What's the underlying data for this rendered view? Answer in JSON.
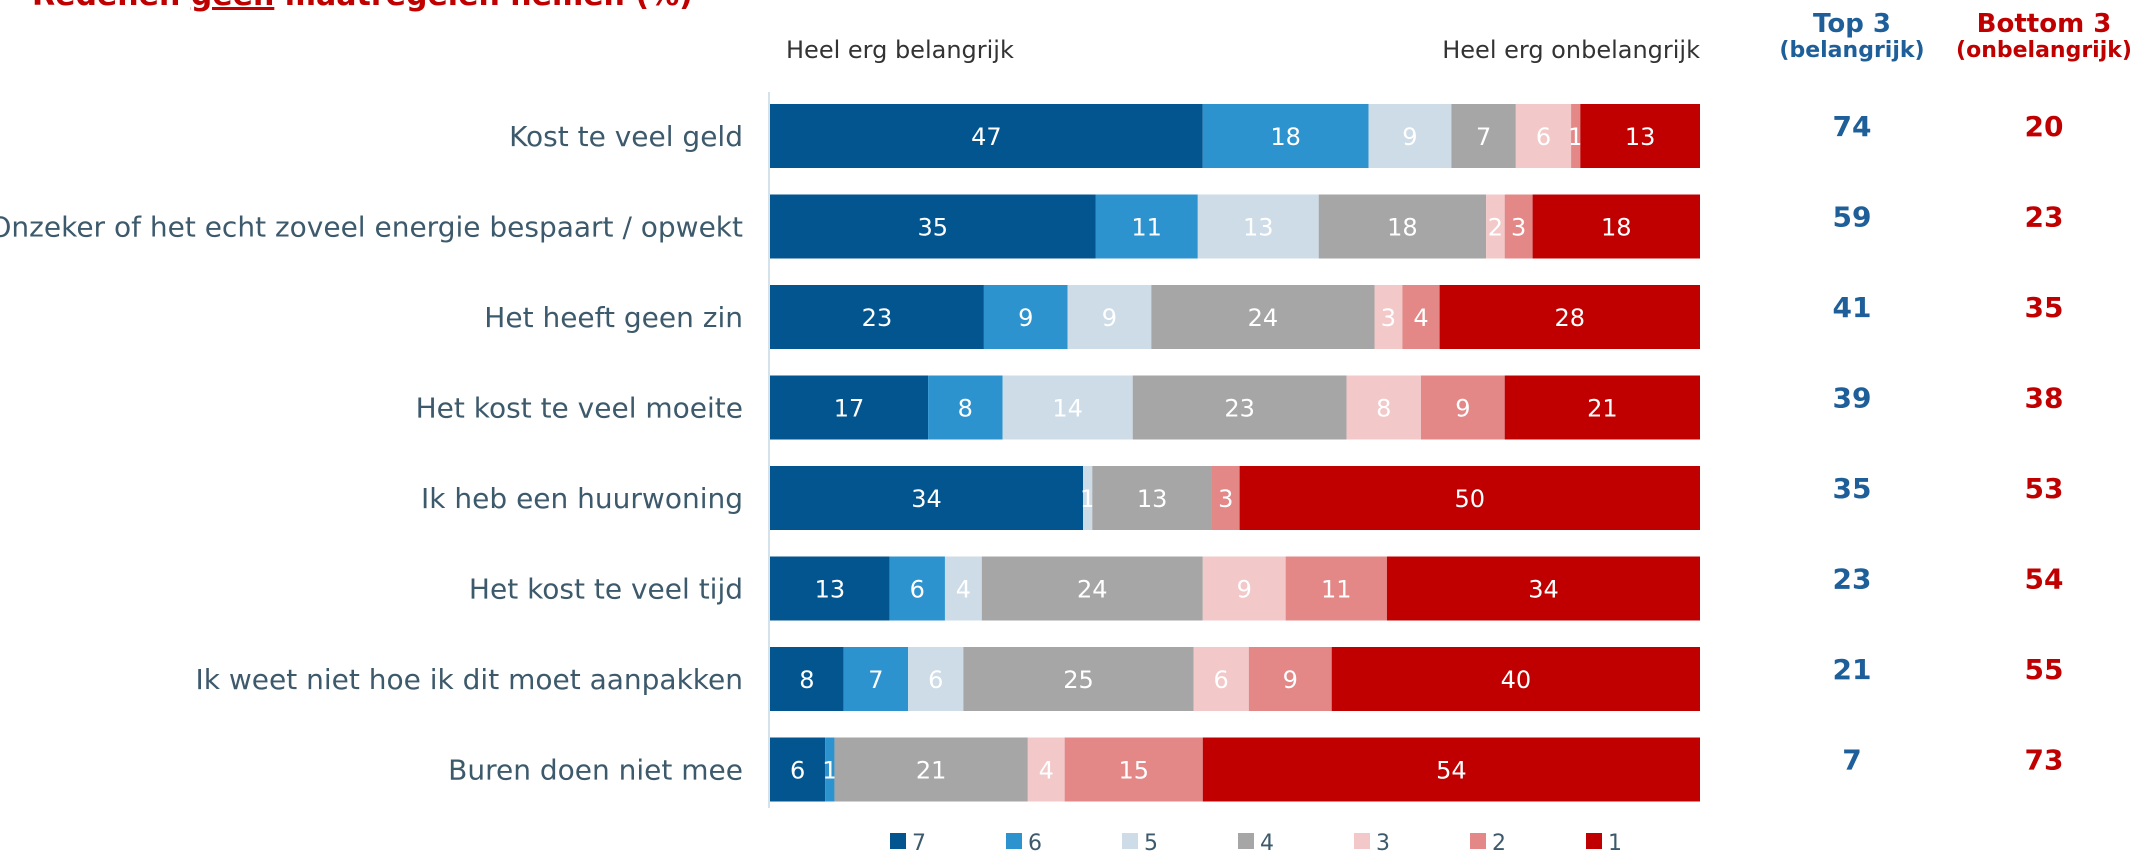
{
  "title": {
    "prefix": "Redenen ",
    "emphasis": "geen",
    "suffix": " maatregelen nemen (%)"
  },
  "header": {
    "left": "Heel erg belangrijk",
    "right": "Heel erg onbelangrijk"
  },
  "columns": {
    "top": {
      "title": "Top 3",
      "subtitle": "(belangrijk)",
      "color": "#1f5f99"
    },
    "bottom": {
      "title": "Bottom 3",
      "subtitle": "(onbelangrijk)",
      "color": "#c00000"
    }
  },
  "chart_data": {
    "type": "bar",
    "orientation": "horizontal",
    "stacked": true,
    "categories": [
      "Kost te veel geld",
      "Onzeker of het echt zoveel energie bespaart / opwekt",
      "Het heeft geen zin",
      "Het kost te veel moeite",
      "Ik heb een huurwoning",
      "Het kost te veel tijd",
      "Ik weet niet hoe ik dit moet aanpakken",
      "Buren doen niet mee"
    ],
    "series": [
      {
        "name": "7",
        "color": "#03558f",
        "values": [
          47,
          35,
          23,
          17,
          34,
          13,
          8,
          6
        ]
      },
      {
        "name": "6",
        "color": "#2d93cf",
        "values": [
          18,
          11,
          9,
          8,
          0,
          6,
          7,
          1
        ]
      },
      {
        "name": "5",
        "color": "#cddce7",
        "values": [
          9,
          13,
          9,
          14,
          1,
          4,
          6,
          0
        ]
      },
      {
        "name": "4",
        "color": "#a6a6a6",
        "values": [
          7,
          18,
          24,
          23,
          13,
          24,
          25,
          21
        ]
      },
      {
        "name": "3",
        "color": "#f2c8c8",
        "values": [
          6,
          2,
          3,
          8,
          0,
          9,
          6,
          4
        ]
      },
      {
        "name": "2",
        "color": "#e38787",
        "values": [
          1,
          3,
          4,
          9,
          3,
          11,
          9,
          15
        ]
      },
      {
        "name": "1",
        "color": "#c00000",
        "values": [
          13,
          18,
          28,
          21,
          50,
          34,
          40,
          54
        ]
      }
    ],
    "top3": [
      74,
      59,
      41,
      39,
      35,
      23,
      21,
      7
    ],
    "bottom3": [
      20,
      23,
      35,
      38,
      53,
      54,
      55,
      73
    ],
    "xlim": [
      0,
      100
    ],
    "legend": "bottom"
  }
}
